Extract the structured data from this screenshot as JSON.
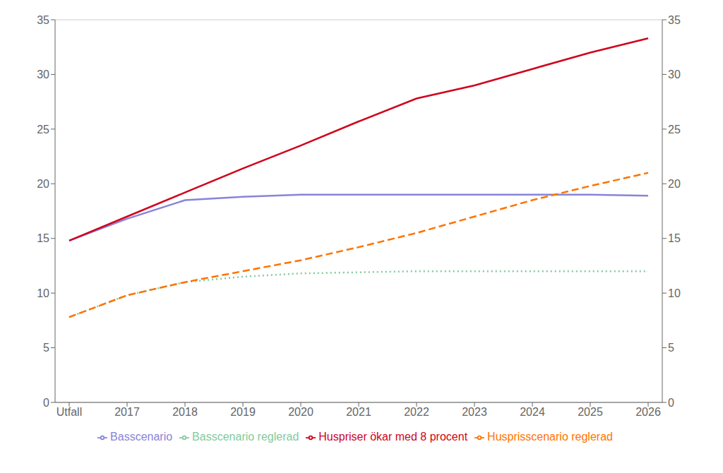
{
  "chart_data": {
    "type": "line",
    "categories": [
      "Utfall",
      "2017",
      "2018",
      "2019",
      "2020",
      "2021",
      "2022",
      "2023",
      "2024",
      "2025",
      "2026"
    ],
    "series": [
      {
        "name": "Basscenario",
        "color": "#8884d8",
        "line_style": "solid",
        "values": [
          14.8,
          16.8,
          18.5,
          18.8,
          19.0,
          19.0,
          19.0,
          19.0,
          19.0,
          19.0,
          18.9
        ]
      },
      {
        "name": "Basscenario reglerad",
        "color": "#82ca9d",
        "line_style": "dotted",
        "values": [
          7.8,
          9.8,
          11.0,
          11.5,
          11.8,
          11.9,
          12.0,
          12.0,
          12.0,
          12.0,
          12.0
        ]
      },
      {
        "name": "Husprisscenario reglerad",
        "color": "#ff7300",
        "line_style": "dashed",
        "values": [
          7.8,
          9.8,
          11.0,
          12.0,
          13.0,
          14.2,
          15.5,
          17.0,
          18.5,
          19.8,
          21.0
        ]
      },
      {
        "name": "Huspriser ökar med 8 procent",
        "color": "#d0021b",
        "line_style": "solid",
        "values": [
          14.8,
          17.0,
          19.2,
          21.4,
          23.5,
          25.7,
          27.8,
          29.0,
          30.5,
          32.0,
          33.3
        ]
      }
    ],
    "ylim": [
      0,
      35
    ],
    "yticks": [
      0,
      5,
      10,
      15,
      20,
      25,
      30,
      35
    ],
    "y2lim": [
      0,
      35
    ],
    "y2ticks": [
      0,
      5,
      10,
      15,
      20,
      25,
      30,
      35
    ],
    "grid": true,
    "legend": "bottom"
  }
}
